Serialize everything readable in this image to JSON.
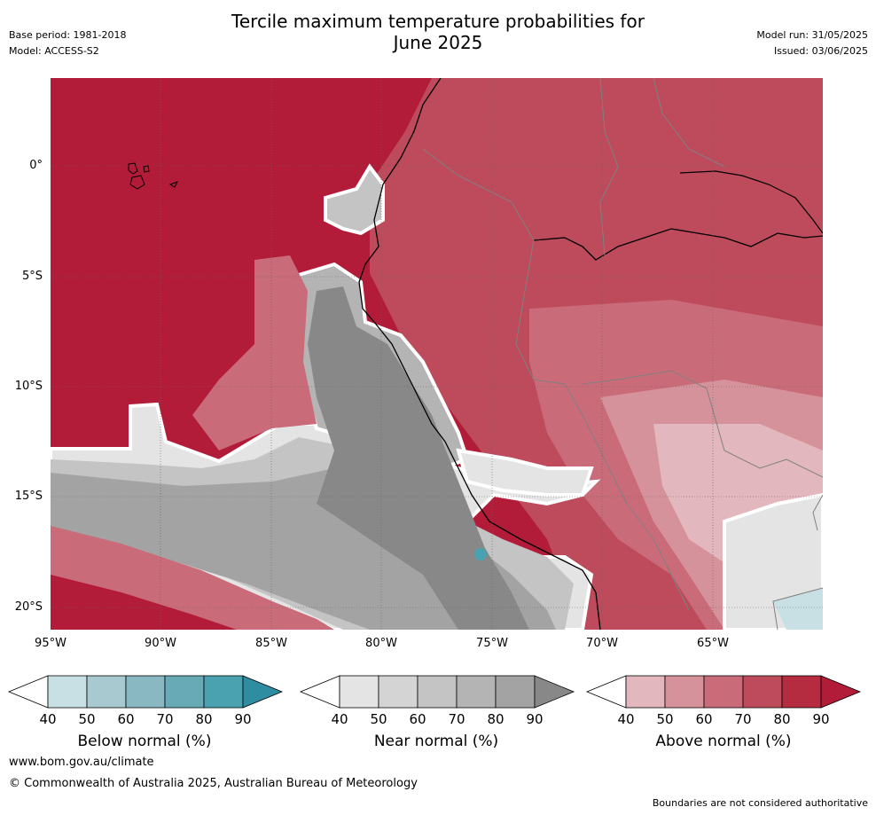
{
  "title_line1": "Tercile maximum temperature probabilities for",
  "title_line2": "June 2025",
  "base_period": "Base period: 1981-2018",
  "model": "Model: ACCESS-S2",
  "model_run": "Model run: 31/05/2025",
  "issued": "Issued: 03/06/2025",
  "lat_labels": [
    "0°",
    "5°S",
    "10°S",
    "15°S",
    "20°S"
  ],
  "lon_labels": [
    "95°W",
    "90°W",
    "85°W",
    "80°W",
    "75°W",
    "70°W",
    "65°W"
  ],
  "colorbars": [
    {
      "label": "Below normal (%)",
      "ticks": [
        "40",
        "50",
        "60",
        "70",
        "80",
        "90"
      ],
      "colors": [
        "#ffffff",
        "#c8e0e4",
        "#a8c9cf",
        "#89b8c2",
        "#68aab6",
        "#4aa2b1",
        "#2e8da1"
      ]
    },
    {
      "label": "Near normal (%)",
      "ticks": [
        "40",
        "50",
        "60",
        "70",
        "80",
        "90"
      ],
      "colors": [
        "#ffffff",
        "#e4e4e4",
        "#d4d4d4",
        "#c4c4c4",
        "#b4b4b4",
        "#a3a3a3",
        "#888888"
      ]
    },
    {
      "label": "Above normal (%)",
      "ticks": [
        "40",
        "50",
        "60",
        "70",
        "80",
        "90"
      ],
      "colors": [
        "#ffffff",
        "#e2b7bd",
        "#d6929b",
        "#c96b78",
        "#bd4b5b",
        "#b52c40",
        "#b21c38"
      ]
    }
  ],
  "website": "www.bom.gov.au/climate",
  "copyright": "© Commonwealth of Australia 2025, Australian Bureau of Meteorology",
  "disclaimer": "Boundaries are not considered authoritative"
}
